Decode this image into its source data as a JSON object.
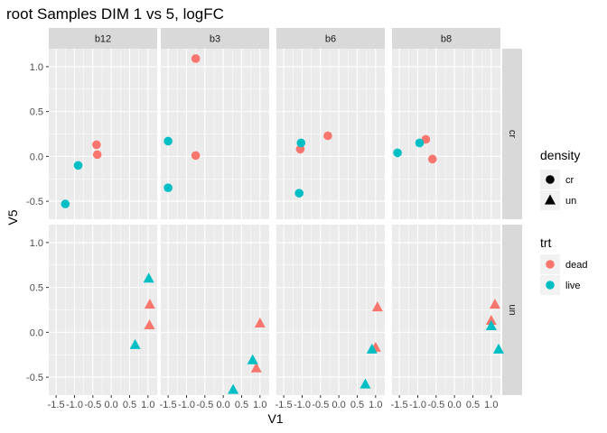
{
  "chart_data": {
    "type": "scatter",
    "title": "root Samples DIM 1 vs 5, logFC",
    "xlabel": "V1",
    "ylabel": "V5",
    "xlim": [
      -1.7,
      1.25
    ],
    "ylim": [
      -0.7,
      1.2
    ],
    "x_ticks": [
      -1.5,
      -1.0,
      -0.5,
      0.0,
      0.5,
      1.0
    ],
    "x_tick_labels": [
      "-1.5",
      "-1.0",
      "-0.5",
      "0.0",
      "0.5",
      "1.0"
    ],
    "y_ticks": [
      -0.5,
      0.0,
      0.5,
      1.0
    ],
    "y_tick_labels": [
      "-0.5",
      "0.0",
      "0.5",
      "1.0"
    ],
    "col_facets": [
      "b12",
      "b3",
      "b6",
      "b8"
    ],
    "row_facets": [
      "cr",
      "un"
    ],
    "colors": {
      "dead": "#F8766D",
      "live": "#00BFC4"
    },
    "points": [
      {
        "col": "b12",
        "row": "cr",
        "x": -0.4,
        "y": 0.13,
        "trt": "dead",
        "density": "cr"
      },
      {
        "col": "b12",
        "row": "cr",
        "x": -0.38,
        "y": 0.02,
        "trt": "dead",
        "density": "cr"
      },
      {
        "col": "b12",
        "row": "cr",
        "x": -0.9,
        "y": -0.1,
        "trt": "live",
        "density": "cr"
      },
      {
        "col": "b12",
        "row": "cr",
        "x": -1.25,
        "y": -0.53,
        "trt": "live",
        "density": "cr"
      },
      {
        "col": "b3",
        "row": "cr",
        "x": -0.75,
        "y": 1.09,
        "trt": "dead",
        "density": "cr"
      },
      {
        "col": "b3",
        "row": "cr",
        "x": -0.75,
        "y": 0.01,
        "trt": "dead",
        "density": "cr"
      },
      {
        "col": "b3",
        "row": "cr",
        "x": -1.5,
        "y": 0.17,
        "trt": "live",
        "density": "cr"
      },
      {
        "col": "b3",
        "row": "cr",
        "x": -1.5,
        "y": -0.35,
        "trt": "live",
        "density": "cr"
      },
      {
        "col": "b6",
        "row": "cr",
        "x": -0.3,
        "y": 0.23,
        "trt": "dead",
        "density": "cr"
      },
      {
        "col": "b6",
        "row": "cr",
        "x": -1.05,
        "y": 0.08,
        "trt": "dead",
        "density": "cr"
      },
      {
        "col": "b6",
        "row": "cr",
        "x": -1.03,
        "y": 0.15,
        "trt": "live",
        "density": "cr"
      },
      {
        "col": "b6",
        "row": "cr",
        "x": -1.08,
        "y": -0.41,
        "trt": "live",
        "density": "cr"
      },
      {
        "col": "b8",
        "row": "cr",
        "x": -0.78,
        "y": 0.19,
        "trt": "dead",
        "density": "cr"
      },
      {
        "col": "b8",
        "row": "cr",
        "x": -0.6,
        "y": -0.03,
        "trt": "dead",
        "density": "cr"
      },
      {
        "col": "b8",
        "row": "cr",
        "x": -0.95,
        "y": 0.15,
        "trt": "live",
        "density": "cr"
      },
      {
        "col": "b8",
        "row": "cr",
        "x": -1.55,
        "y": 0.04,
        "trt": "live",
        "density": "cr"
      },
      {
        "col": "b12",
        "row": "un",
        "x": 1.05,
        "y": 0.31,
        "trt": "dead",
        "density": "un"
      },
      {
        "col": "b12",
        "row": "un",
        "x": 1.04,
        "y": 0.08,
        "trt": "dead",
        "density": "un"
      },
      {
        "col": "b12",
        "row": "un",
        "x": 1.02,
        "y": 0.6,
        "trt": "live",
        "density": "un"
      },
      {
        "col": "b12",
        "row": "un",
        "x": 0.65,
        "y": -0.14,
        "trt": "live",
        "density": "un"
      },
      {
        "col": "b3",
        "row": "un",
        "x": 1.0,
        "y": 0.1,
        "trt": "dead",
        "density": "un"
      },
      {
        "col": "b3",
        "row": "un",
        "x": 0.9,
        "y": -0.4,
        "trt": "dead",
        "density": "un"
      },
      {
        "col": "b3",
        "row": "un",
        "x": 0.8,
        "y": -0.31,
        "trt": "live",
        "density": "un"
      },
      {
        "col": "b3",
        "row": "un",
        "x": 0.27,
        "y": -0.64,
        "trt": "live",
        "density": "un"
      },
      {
        "col": "b6",
        "row": "un",
        "x": 1.05,
        "y": 0.28,
        "trt": "dead",
        "density": "un"
      },
      {
        "col": "b6",
        "row": "un",
        "x": 1.0,
        "y": -0.17,
        "trt": "dead",
        "density": "un"
      },
      {
        "col": "b6",
        "row": "un",
        "x": 0.9,
        "y": -0.19,
        "trt": "live",
        "density": "un"
      },
      {
        "col": "b6",
        "row": "un",
        "x": 0.72,
        "y": -0.58,
        "trt": "live",
        "density": "un"
      },
      {
        "col": "b8",
        "row": "un",
        "x": 1.1,
        "y": 0.31,
        "trt": "dead",
        "density": "un"
      },
      {
        "col": "b8",
        "row": "un",
        "x": 1.0,
        "y": 0.13,
        "trt": "dead",
        "density": "un"
      },
      {
        "col": "b8",
        "row": "un",
        "x": 1.0,
        "y": 0.07,
        "trt": "live",
        "density": "un"
      },
      {
        "col": "b8",
        "row": "un",
        "x": 1.2,
        "y": -0.19,
        "trt": "live",
        "density": "un"
      }
    ],
    "legend": {
      "density": {
        "title": "density",
        "entries": [
          "cr",
          "un"
        ]
      },
      "trt": {
        "title": "trt",
        "entries": [
          "dead",
          "live"
        ]
      }
    }
  }
}
